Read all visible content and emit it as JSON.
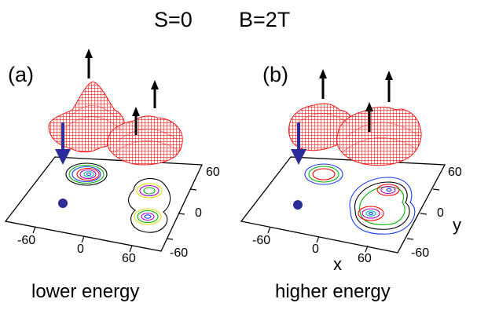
{
  "header": {
    "spin": "S=0",
    "field": "B=2T"
  },
  "panels": [
    {
      "label": "(a)",
      "caption": "lower energy",
      "ticks": {
        "x": [
          "-60",
          "0",
          "60"
        ],
        "y": [
          "60",
          "0",
          "-60"
        ]
      }
    },
    {
      "label": "(b)",
      "caption": "higher energy",
      "ticks": {
        "x": [
          "-60",
          "0",
          "60"
        ],
        "y": [
          "60",
          "0",
          "-60"
        ]
      },
      "axis_labels": {
        "x": "x",
        "y": "y"
      }
    }
  ],
  "colors": {
    "surface": "#ff2020",
    "spin_down_arrow": "#2b2b9a",
    "spin_up_arrow": "#000000",
    "contours": [
      "#000000",
      "#1a3cff",
      "#00b000",
      "#ff0000",
      "#b000c0",
      "#e0e000",
      "#00c0c0",
      "#ff8000"
    ]
  }
}
